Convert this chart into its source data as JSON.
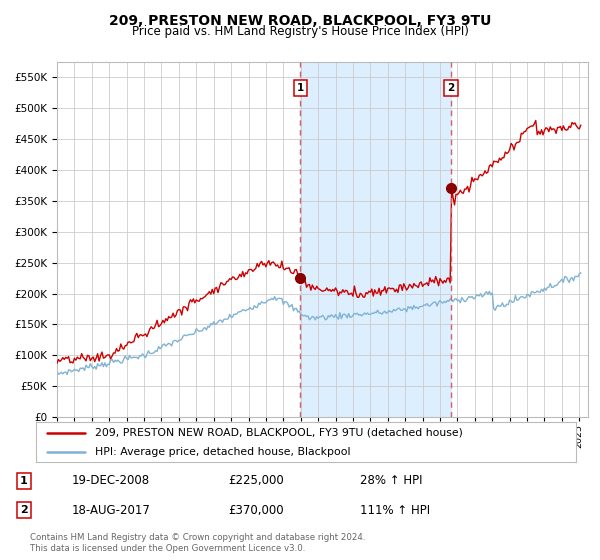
{
  "title": "209, PRESTON NEW ROAD, BLACKPOOL, FY3 9TU",
  "subtitle": "Price paid vs. HM Land Registry's House Price Index (HPI)",
  "legend_line1": "209, PRESTON NEW ROAD, BLACKPOOL, FY3 9TU (detached house)",
  "legend_line2": "HPI: Average price, detached house, Blackpool",
  "footnote": "Contains HM Land Registry data © Crown copyright and database right 2024.\nThis data is licensed under the Open Government Licence v3.0.",
  "annotation1": {
    "label": "1",
    "date": "19-DEC-2008",
    "price": "£225,000",
    "pct": "28% ↑ HPI"
  },
  "annotation2": {
    "label": "2",
    "date": "18-AUG-2017",
    "price": "£370,000",
    "pct": "111% ↑ HPI"
  },
  "sale1_x": 2008.97,
  "sale1_y": 225000,
  "sale2_x": 2017.63,
  "sale2_y": 370000,
  "shade_x1": 2008.97,
  "shade_x2": 2017.63,
  "vline1_x": 2008.97,
  "vline2_x": 2017.63,
  "ylim": [
    0,
    575000
  ],
  "xlim_start": 1995.0,
  "xlim_end": 2025.5,
  "plot_color_red": "#cc0000",
  "plot_color_blue": "#7fb3d3",
  "shade_color": "#ddeeff",
  "grid_color": "#cccccc",
  "bg_color": "#ffffff"
}
